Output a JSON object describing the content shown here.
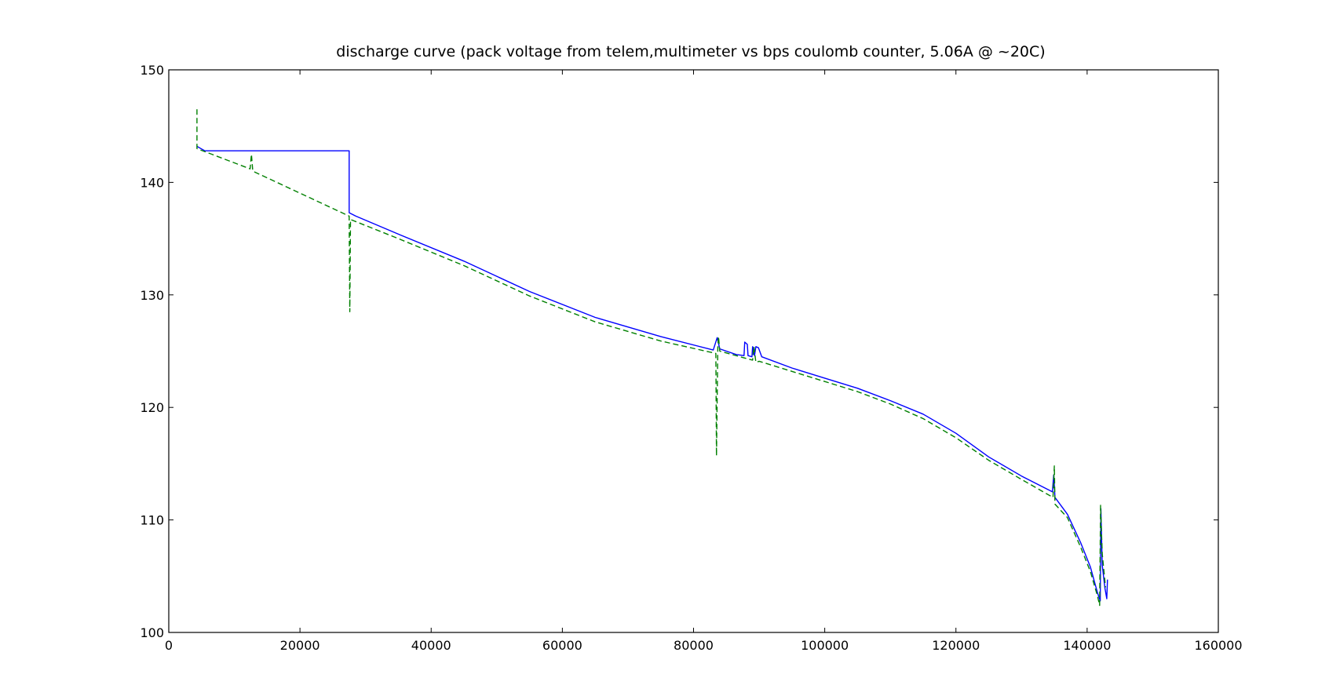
{
  "chart_data": {
    "type": "line",
    "title": "discharge curve (pack voltage from telem,multimeter vs bps coulomb counter, 5.06A @ ~20C)",
    "xlabel": "",
    "ylabel": "",
    "xlim": [
      0,
      160000
    ],
    "ylim": [
      100,
      150
    ],
    "x_ticks": [
      0,
      20000,
      40000,
      60000,
      80000,
      100000,
      120000,
      140000,
      160000
    ],
    "y_ticks": [
      100,
      110,
      120,
      130,
      140,
      150
    ],
    "grid": false,
    "series": [
      {
        "color": "#0000ff",
        "style": "solid",
        "points": [
          [
            4300,
            143.2
          ],
          [
            5500,
            142.8
          ],
          [
            27500,
            142.8
          ],
          [
            27500,
            137.3
          ],
          [
            28500,
            137.0
          ],
          [
            35000,
            135.4
          ],
          [
            45000,
            133.0
          ],
          [
            55000,
            130.3
          ],
          [
            65000,
            128.0
          ],
          [
            75000,
            126.3
          ],
          [
            83000,
            125.1
          ],
          [
            83600,
            126.2
          ],
          [
            84000,
            125.2
          ],
          [
            86500,
            124.7
          ],
          [
            87700,
            124.6
          ],
          [
            87800,
            125.8
          ],
          [
            88200,
            125.6
          ],
          [
            88300,
            124.6
          ],
          [
            88900,
            124.5
          ],
          [
            89000,
            125.4
          ],
          [
            89300,
            124.6
          ],
          [
            89500,
            125.4
          ],
          [
            89900,
            125.3
          ],
          [
            90400,
            124.5
          ],
          [
            95000,
            123.5
          ],
          [
            100000,
            122.6
          ],
          [
            105000,
            121.7
          ],
          [
            110000,
            120.6
          ],
          [
            115000,
            119.4
          ],
          [
            120000,
            117.7
          ],
          [
            125000,
            115.6
          ],
          [
            130000,
            113.9
          ],
          [
            134700,
            112.5
          ],
          [
            134900,
            114.0
          ],
          [
            135100,
            112.0
          ],
          [
            137000,
            110.5
          ],
          [
            139000,
            108.0
          ],
          [
            140500,
            105.8
          ],
          [
            141600,
            103.5
          ],
          [
            142000,
            102.8
          ],
          [
            142100,
            111.0
          ],
          [
            142300,
            106.0
          ],
          [
            142700,
            104.0
          ],
          [
            143000,
            103.0
          ],
          [
            143100,
            104.7
          ]
        ]
      },
      {
        "color": "#008000",
        "style": "dashed",
        "points": [
          [
            4300,
            146.5
          ],
          [
            4300,
            143.0
          ],
          [
            12400,
            141.2
          ],
          [
            12600,
            142.5
          ],
          [
            12800,
            141.0
          ],
          [
            27500,
            137.0
          ],
          [
            27600,
            128.5
          ],
          [
            27700,
            136.7
          ],
          [
            35000,
            135.0
          ],
          [
            45000,
            132.6
          ],
          [
            55000,
            129.9
          ],
          [
            65000,
            127.6
          ],
          [
            75000,
            125.9
          ],
          [
            83400,
            124.8
          ],
          [
            83500,
            115.7
          ],
          [
            83700,
            125.3
          ],
          [
            83800,
            126.3
          ],
          [
            84000,
            125.0
          ],
          [
            89000,
            124.2
          ],
          [
            89200,
            125.4
          ],
          [
            89500,
            124.0
          ],
          [
            90000,
            124.1
          ],
          [
            95000,
            123.2
          ],
          [
            100000,
            122.3
          ],
          [
            105000,
            121.4
          ],
          [
            110000,
            120.3
          ],
          [
            115000,
            119.0
          ],
          [
            120000,
            117.3
          ],
          [
            125000,
            115.3
          ],
          [
            130000,
            113.6
          ],
          [
            134800,
            112.0
          ],
          [
            135000,
            114.8
          ],
          [
            135100,
            111.4
          ],
          [
            137000,
            110.2
          ],
          [
            139000,
            107.6
          ],
          [
            140500,
            105.4
          ],
          [
            141600,
            103.2
          ],
          [
            141900,
            102.4
          ],
          [
            142050,
            111.3
          ],
          [
            142300,
            107.0
          ],
          [
            142800,
            104.0
          ]
        ]
      }
    ]
  }
}
